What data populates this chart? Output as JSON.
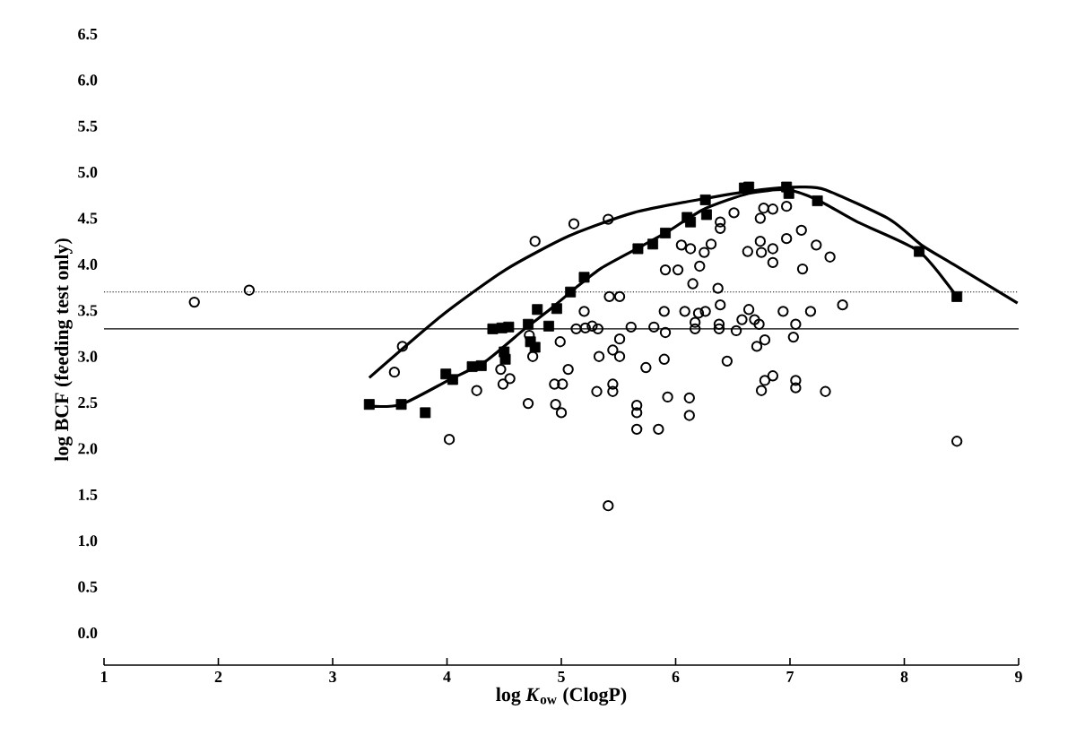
{
  "chart_data": {
    "type": "scatter",
    "xlabel": "log *K*$_{ow}$ (ClogP)",
    "ylabel": "log BCF (feeding test only)",
    "xlim": [
      1,
      9
    ],
    "ylim": [
      -0.35,
      6.5
    ],
    "xticks": [
      1,
      2,
      3,
      4,
      5,
      6,
      7,
      8,
      9
    ],
    "yticks": [
      {
        "value": 0,
        "label": "0.0"
      },
      {
        "value": 0.5,
        "label": "0.5"
      },
      {
        "value": 1,
        "label": "1.0"
      },
      {
        "value": 1.5,
        "label": "1.5"
      },
      {
        "value": 2,
        "label": "2.0"
      },
      {
        "value": 2.5,
        "label": "2.5"
      },
      {
        "value": 3,
        "label": "3.0"
      },
      {
        "value": 3.5,
        "label": "3.5"
      },
      {
        "value": 4,
        "label": "4.0"
      },
      {
        "value": 4.5,
        "label": "4.5"
      },
      {
        "value": 5,
        "label": "5.0"
      },
      {
        "value": 5.5,
        "label": "5.5"
      },
      {
        "value": 6,
        "label": "6.0"
      },
      {
        "value": 6.5,
        "label": "6.5"
      }
    ],
    "grid": false,
    "ref_lines": [
      {
        "axis": "y",
        "value": 3.7,
        "line_style": "dotted",
        "color": "#000000"
      },
      {
        "axis": "y",
        "value": 3.3,
        "line_style": "solid",
        "color": "#000000"
      }
    ],
    "series": [
      {
        "marker": "circle",
        "color": "#000000",
        "x": [
          1.79,
          2.27,
          3.61,
          3.54,
          4.02,
          4.26,
          4.47,
          4.49,
          4.55,
          4.71,
          4.77,
          4.75,
          4.72,
          4.95,
          5.0,
          4.99,
          4.94,
          5.01,
          5.06,
          5.11,
          5.2,
          5.13,
          5.21,
          5.27,
          5.32,
          5.33,
          5.31,
          5.41,
          5.42,
          5.51,
          5.45,
          5.51,
          5.51,
          5.45,
          5.45,
          5.61,
          5.66,
          5.66,
          5.66,
          5.74,
          5.81,
          5.85,
          5.91,
          5.9,
          5.93,
          5.9,
          5.91,
          6.02,
          6.05,
          6.13,
          6.15,
          6.08,
          6.12,
          6.12,
          6.17,
          6.17,
          6.2,
          6.21,
          6.25,
          6.26,
          6.31,
          6.39,
          6.39,
          6.37,
          6.39,
          6.38,
          6.38,
          6.45,
          6.51,
          6.53,
          6.58,
          6.63,
          6.64,
          6.69,
          6.71,
          6.73,
          6.74,
          6.74,
          6.75,
          6.77,
          6.78,
          6.75,
          6.78,
          6.85,
          6.85,
          6.85,
          6.85,
          6.97,
          6.97,
          6.94,
          7.05,
          7.03,
          7.05,
          7.05,
          7.1,
          7.11,
          7.18,
          7.23,
          7.31,
          7.35,
          7.46,
          8.46,
          5.41
        ],
        "values": [
          3.59,
          3.72,
          3.11,
          2.83,
          2.1,
          2.63,
          2.86,
          2.7,
          2.76,
          2.49,
          4.25,
          3.0,
          3.23,
          2.48,
          2.39,
          3.16,
          2.7,
          2.7,
          2.86,
          4.44,
          3.49,
          3.3,
          3.31,
          3.33,
          3.3,
          3.0,
          2.62,
          4.49,
          3.65,
          3.65,
          3.07,
          3.19,
          3.0,
          2.7,
          2.62,
          3.32,
          2.47,
          2.39,
          2.21,
          2.88,
          3.32,
          2.21,
          3.26,
          2.97,
          2.56,
          3.49,
          3.94,
          3.94,
          4.21,
          4.17,
          3.79,
          3.49,
          2.55,
          2.36,
          3.37,
          3.3,
          3.47,
          3.98,
          4.13,
          3.49,
          4.22,
          4.46,
          4.39,
          3.74,
          3.56,
          3.35,
          3.3,
          2.95,
          4.56,
          3.28,
          3.4,
          4.14,
          3.51,
          3.4,
          3.11,
          3.35,
          4.5,
          4.25,
          4.13,
          4.61,
          3.18,
          2.63,
          2.74,
          2.79,
          4.6,
          4.17,
          4.02,
          4.63,
          4.28,
          3.49,
          3.35,
          3.21,
          2.74,
          2.66,
          4.37,
          3.95,
          3.49,
          4.21,
          2.62,
          4.08,
          3.56,
          2.08,
          1.38
        ]
      },
      {
        "marker": "square",
        "color": "#000000",
        "x": [
          3.32,
          3.6,
          3.81,
          3.99,
          4.05,
          4.22,
          4.3,
          4.4,
          4.48,
          4.54,
          4.5,
          4.51,
          4.71,
          4.73,
          4.77,
          4.79,
          4.89,
          4.96,
          5.08,
          5.2,
          5.67,
          5.8,
          5.91,
          6.1,
          6.13,
          6.26,
          6.27,
          6.6,
          6.64,
          6.97,
          6.99,
          7.24,
          8.13,
          8.46
        ],
        "values": [
          2.48,
          2.48,
          2.39,
          2.81,
          2.75,
          2.89,
          2.9,
          3.3,
          3.31,
          3.32,
          3.05,
          2.97,
          3.35,
          3.16,
          3.1,
          3.51,
          3.33,
          3.52,
          3.7,
          3.86,
          4.17,
          4.22,
          4.34,
          4.51,
          4.46,
          4.7,
          4.54,
          4.83,
          4.84,
          4.84,
          4.77,
          4.69,
          4.14,
          3.65
        ]
      },
      {
        "type": "line",
        "marker": "none",
        "line_style": "solid",
        "color": "#000000",
        "x": [
          3.32,
          3.95,
          4.51,
          5.07,
          5.63,
          6.19,
          6.75,
          7.09,
          7.31,
          7.87,
          8.15,
          8.43,
          8.99
        ],
        "values": [
          2.77,
          3.44,
          3.94,
          4.31,
          4.56,
          4.7,
          4.81,
          4.84,
          4.81,
          4.49,
          4.21,
          4.0,
          3.58
        ]
      },
      {
        "type": "line",
        "marker": "none",
        "line_style": "solid",
        "color": "#000000",
        "x": [
          3.32,
          3.6,
          4.01,
          4.34,
          4.68,
          4.9,
          5.13,
          5.35,
          5.69,
          5.91,
          6.25,
          6.64,
          6.97,
          7.24,
          7.59,
          8.13,
          8.46
        ],
        "values": [
          2.46,
          2.48,
          2.74,
          2.95,
          3.3,
          3.51,
          3.75,
          3.96,
          4.19,
          4.34,
          4.6,
          4.77,
          4.81,
          4.7,
          4.46,
          4.14,
          3.65
        ]
      }
    ]
  }
}
